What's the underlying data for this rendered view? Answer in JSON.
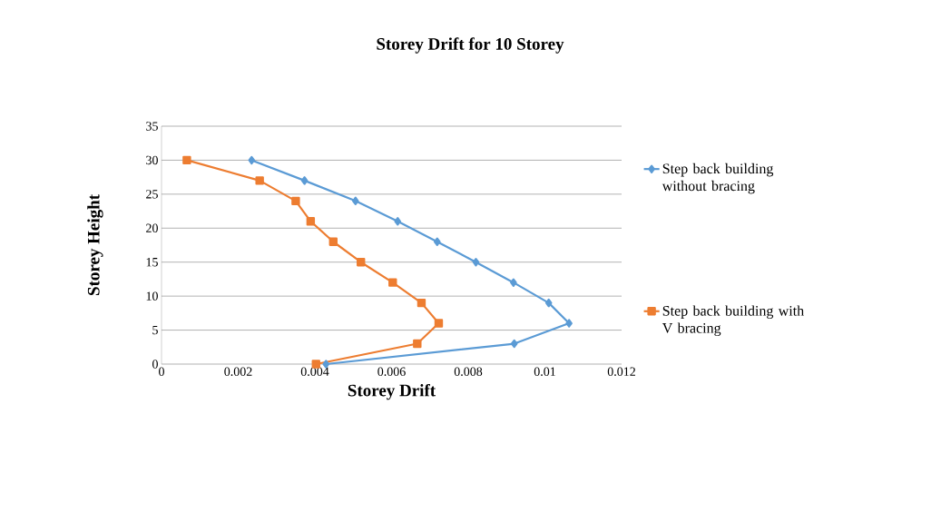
{
  "chart_data": {
    "type": "line",
    "title": "Storey Drift  for 10 Storey",
    "xlabel": "Storey Drift",
    "ylabel": "Storey Height",
    "xlim": [
      0,
      0.012
    ],
    "xticks": [
      0,
      0.002,
      0.004,
      0.006,
      0.008,
      0.01,
      0.012
    ],
    "ylim": [
      0,
      35
    ],
    "yticks": [
      0,
      5,
      10,
      15,
      20,
      25,
      30,
      35
    ],
    "grid": "y",
    "legend": "right",
    "line_style": "solid",
    "series": [
      {
        "name": "Step back building without bracing",
        "color": "#5b9bd5",
        "marker": "diamond",
        "x": [
          0.00429,
          0.0092,
          0.01063,
          0.0101,
          0.00918,
          0.0082,
          0.00719,
          0.00616,
          0.00506,
          0.00373,
          0.00235
        ],
        "values": [
          0,
          3,
          6,
          9,
          12,
          15,
          18,
          21,
          24,
          27,
          30
        ]
      },
      {
        "name": "Step back building with V bracing",
        "color": "#ed7d31",
        "marker": "square",
        "x": [
          0.00403,
          0.00667,
          0.00723,
          0.00678,
          0.00603,
          0.0052,
          0.00448,
          0.00389,
          0.0035,
          0.00256,
          0.00066
        ],
        "values": [
          0,
          3,
          6,
          9,
          12,
          15,
          18,
          21,
          24,
          27,
          30
        ]
      }
    ]
  }
}
